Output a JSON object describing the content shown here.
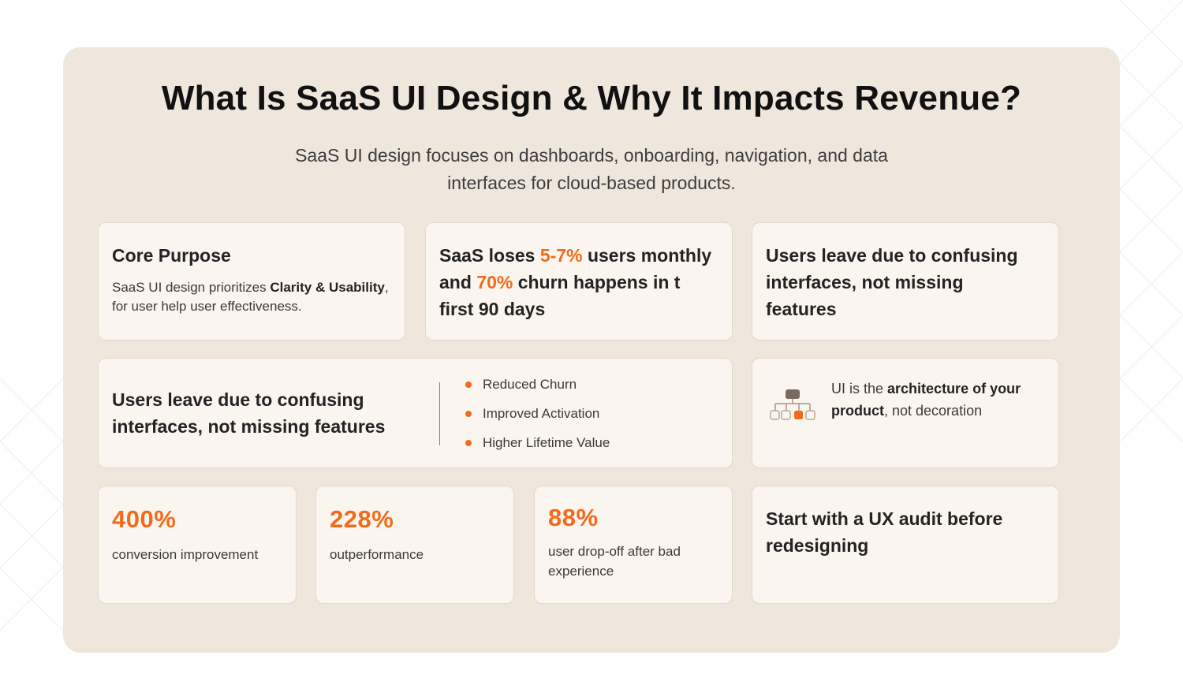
{
  "header": {
    "title": "What Is SaaS UI Design & Why It Impacts Revenue?",
    "subtitle_line1": "SaaS UI design focuses on dashboards, onboarding, navigation, and data",
    "subtitle_line2": "interfaces for cloud-based products."
  },
  "core_purpose": {
    "heading": "Core Purpose",
    "body_pre": "SaaS UI design prioritizes ",
    "body_bold": "Clarity & Usability",
    "body_post": ", for user help user effectiveness."
  },
  "churn_stat": {
    "part1": "SaaS loses ",
    "highlight1": "5-7%",
    "part2": " users monthly and ",
    "highlight2": "70%",
    "part3": " churn happens in t first 90 days"
  },
  "leave_card": {
    "heading": "Users leave due to confusing interfaces, not missing features"
  },
  "benefits_card": {
    "heading": "Users leave due to confusing interfaces, not missing features",
    "items": [
      "Reduced Churn",
      "Improved Activation",
      "Higher Lifetime Value"
    ]
  },
  "architecture_card": {
    "icon": "hierarchy-icon",
    "text_pre": "UI is the ",
    "text_bold": "architecture of your product",
    "text_post": ", not decoration"
  },
  "stats": [
    {
      "value": "400%",
      "label": "conversion improvement"
    },
    {
      "value": "228%",
      "label": "outperformance"
    },
    {
      "value": "88%",
      "label": "user drop-off after bad experience"
    }
  ],
  "audit_card": {
    "heading": "Start with a UX audit before redesigning"
  },
  "colors": {
    "accent": "#f26a1b",
    "panel": "#efe6dc",
    "card": "#fbf5ef",
    "text": "#232323"
  }
}
